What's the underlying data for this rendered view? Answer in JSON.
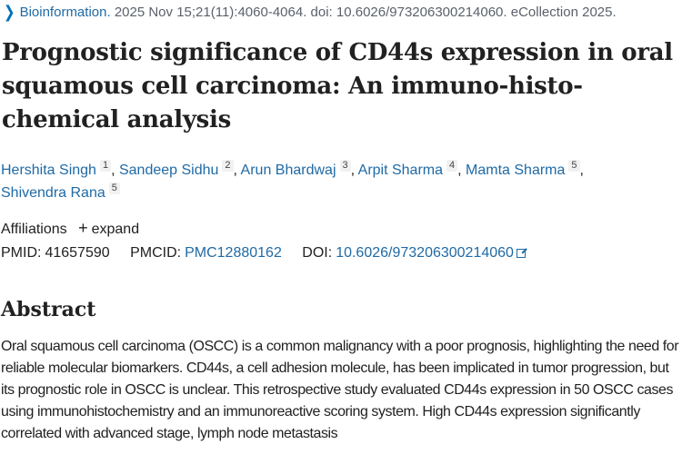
{
  "citation": {
    "chevron_icon": "chevron-right-icon",
    "journal": "Bioinformation.",
    "details": "2025 Nov 15;21(11):4060-4064. doi: 10.6026/973206300214060. eCollection 2025."
  },
  "article": {
    "title": "Prognostic significance of CD44s expression in oral squamous cell carcinoma: An immuno-histo-chemical analysis"
  },
  "authors": [
    {
      "name": "Hershita Singh",
      "affil": "1",
      "sep": ", "
    },
    {
      "name": "Sandeep Sidhu",
      "affil": "2",
      "sep": ", "
    },
    {
      "name": "Arun Bhardwaj",
      "affil": "3",
      "sep": ", "
    },
    {
      "name": "Arpit Sharma",
      "affil": "4",
      "sep": ", "
    },
    {
      "name": "Mamta Sharma",
      "affil": "5",
      "sep": ", "
    },
    {
      "name": "Shivendra Rana",
      "affil": "5",
      "sep": ""
    }
  ],
  "affiliations": {
    "label": "Affiliations",
    "expand_icon": "plus-icon",
    "expand_symbol": "+",
    "expand_label": "expand"
  },
  "identifiers": {
    "pmid_label": "PMID:",
    "pmid": "41657590",
    "pmcid_label": "PMCID:",
    "pmcid": "PMC12880162",
    "doi_label": "DOI:",
    "doi": "10.6026/973206300214060",
    "doi_icon": "external-link-icon"
  },
  "abstract": {
    "heading": "Abstract",
    "text": "Oral squamous cell carcinoma (OSCC) is a common malignancy with a poor prognosis, highlighting the need for reliable molecular biomarkers. CD44s, a cell adhesion molecule, has been implicated in tumor progression, but its prognostic role in OSCC is unclear. This retrospective study evaluated CD44s expression in 50 OSCC cases using immunohistochemistry and an immunoreactive scoring system. High CD44s expression significantly correlated with advanced stage, lymph node metastasis"
  },
  "colors": {
    "link": "#1f6aa5",
    "text": "#212121",
    "muted": "#5b616b",
    "background": "#ffffff"
  }
}
